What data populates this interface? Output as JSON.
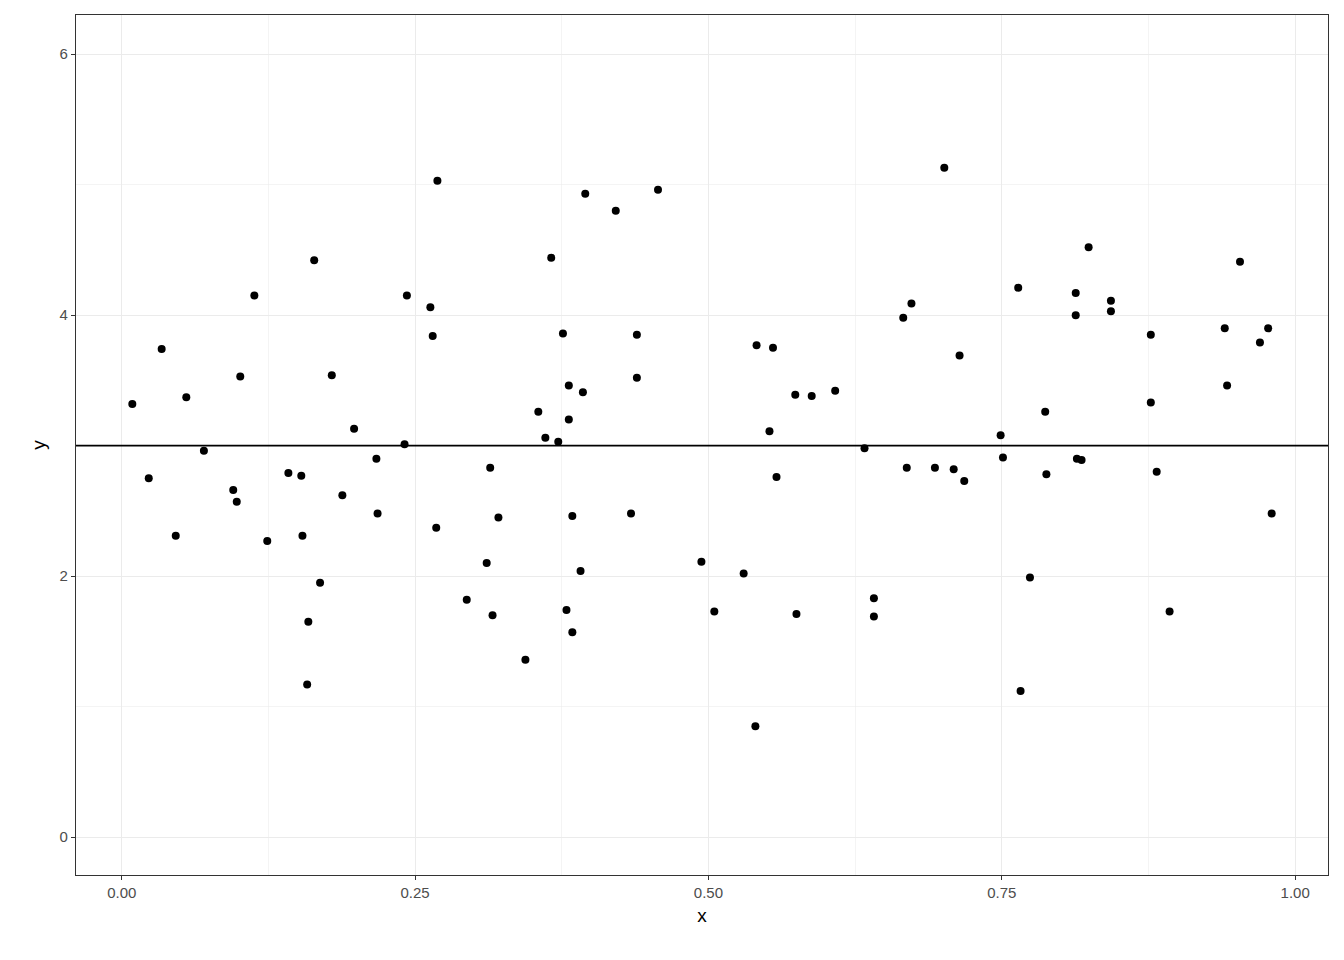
{
  "chart_data": {
    "type": "scatter",
    "x_label": "x",
    "y_label": "y",
    "xlim": [
      -0.039,
      1.028
    ],
    "ylim": [
      -0.29,
      6.3
    ],
    "xticks": [
      {
        "value": 0,
        "label": "0.00"
      },
      {
        "value": 0.25,
        "label": "0.25"
      },
      {
        "value": 0.5,
        "label": "0.50"
      },
      {
        "value": 0.75,
        "label": "0.75"
      },
      {
        "value": 1,
        "label": "1.00"
      }
    ],
    "yticks": [
      0,
      2,
      4,
      6
    ],
    "grid": true,
    "color": "#000000",
    "marker": "circle",
    "hline": 3,
    "x": [
      0.009,
      0.023,
      0.034,
      0.046,
      0.055,
      0.07,
      0.095,
      0.098,
      0.101,
      0.113,
      0.124,
      0.142,
      0.153,
      0.154,
      0.158,
      0.159,
      0.164,
      0.169,
      0.179,
      0.188,
      0.198,
      0.217,
      0.218,
      0.241,
      0.243,
      0.263,
      0.265,
      0.268,
      0.269,
      0.294,
      0.311,
      0.314,
      0.316,
      0.321,
      0.344,
      0.355,
      0.361,
      0.366,
      0.372,
      0.376,
      0.379,
      0.381,
      0.381,
      0.384,
      0.384,
      0.391,
      0.393,
      0.395,
      0.421,
      0.434,
      0.439,
      0.439,
      0.457,
      0.494,
      0.505,
      0.53,
      0.54,
      0.541,
      0.552,
      0.555,
      0.558,
      0.574,
      0.575,
      0.588,
      0.608,
      0.633,
      0.641,
      0.641,
      0.666,
      0.669,
      0.673,
      0.693,
      0.701,
      0.709,
      0.714,
      0.718,
      0.749,
      0.751,
      0.764,
      0.766,
      0.774,
      0.787,
      0.788,
      0.813,
      0.813,
      0.814,
      0.818,
      0.824,
      0.843,
      0.843,
      0.877,
      0.877,
      0.882,
      0.893,
      0.94,
      0.942,
      0.953,
      0.97,
      0.977,
      0.98
    ],
    "values": [
      3.32,
      2.75,
      3.74,
      2.31,
      3.37,
      2.96,
      2.66,
      2.57,
      3.53,
      4.15,
      2.27,
      2.79,
      2.77,
      2.31,
      1.17,
      1.65,
      4.42,
      1.95,
      3.54,
      2.62,
      3.13,
      2.9,
      2.48,
      3.01,
      4.15,
      4.06,
      3.84,
      2.37,
      5.03,
      1.82,
      2.1,
      2.83,
      1.7,
      2.45,
      1.36,
      3.26,
      3.06,
      4.44,
      3.03,
      3.86,
      1.74,
      3.46,
      3.2,
      1.57,
      2.46,
      2.04,
      3.41,
      4.93,
      4.8,
      2.48,
      3.85,
      3.52,
      4.96,
      2.11,
      1.73,
      2.02,
      0.85,
      3.77,
      3.11,
      3.75,
      2.76,
      3.39,
      1.71,
      3.38,
      3.42,
      2.98,
      1.83,
      1.69,
      3.98,
      2.83,
      4.09,
      2.83,
      5.13,
      2.82,
      3.69,
      2.73,
      3.08,
      2.91,
      4.21,
      1.12,
      1.99,
      3.26,
      2.78,
      4.17,
      4.0,
      2.9,
      2.89,
      4.52,
      4.11,
      4.03,
      3.85,
      3.33,
      2.8,
      1.73,
      3.9,
      3.46,
      4.41,
      3.79,
      3.9,
      2.48
    ]
  }
}
